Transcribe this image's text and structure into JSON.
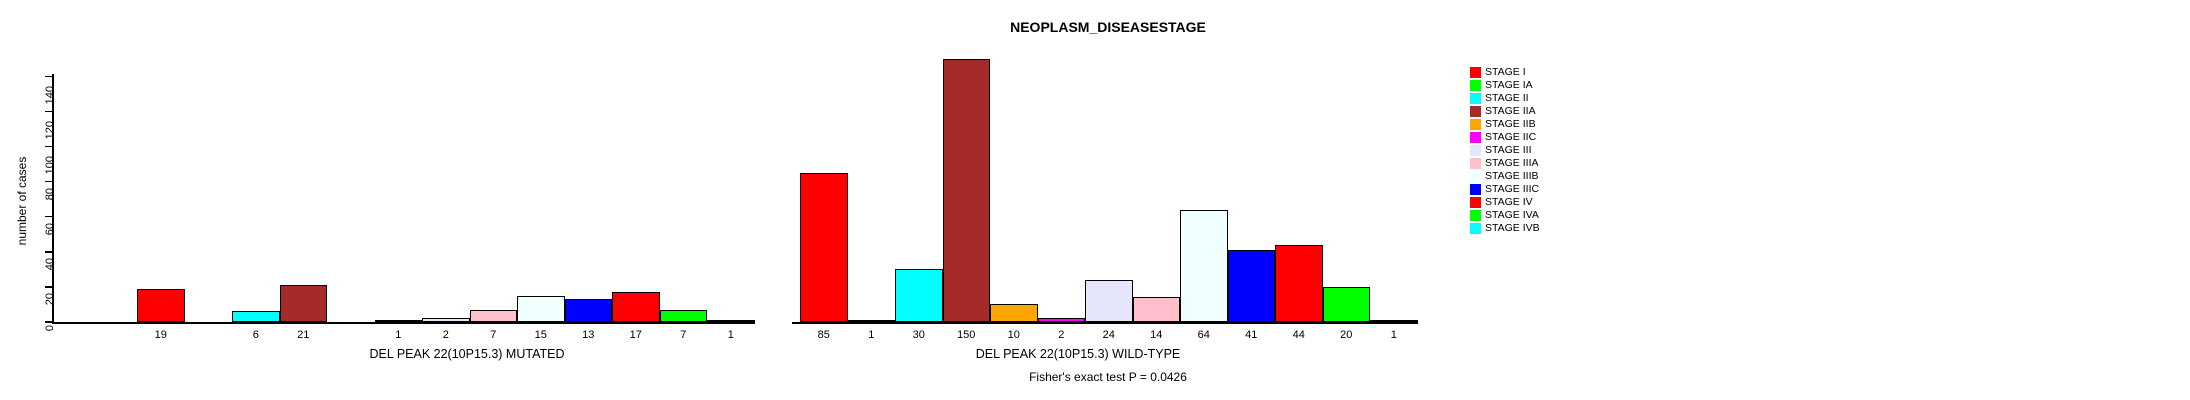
{
  "chart_data": {
    "type": "bar",
    "title": "NEOPLASM_DISEASESTAGE",
    "ylabel": "number of cases",
    "footer": "Fisher's exact test P = 0.0426",
    "ylim": [
      0,
      150
    ],
    "yticks": [
      0,
      20,
      40,
      60,
      80,
      100,
      120,
      140
    ],
    "grid": false,
    "legend_position": "right",
    "categories": [
      "STAGE I",
      "STAGE IA",
      "STAGE II",
      "STAGE IIA",
      "STAGE IIB",
      "STAGE IIC",
      "STAGE III",
      "STAGE IIIA",
      "STAGE IIIB",
      "STAGE IIIC",
      "STAGE IV",
      "STAGE IVA",
      "STAGE IVB"
    ],
    "colors": [
      "#FF0000",
      "#00FF00",
      "#00FFFF",
      "#A52A2A",
      "#FFA500",
      "#FF00FF",
      "#E6E6FA",
      "#FFC0CB",
      "#F0FFFF",
      "#0000FF",
      "#FF0000",
      "#00FF00",
      "#00FFFF"
    ],
    "series": [
      {
        "name": "DEL PEAK 22(10P15.3) MUTATED",
        "key": "mutated",
        "values": [
          19,
          null,
          6,
          21,
          null,
          1,
          2,
          7,
          15,
          13,
          17,
          7,
          1
        ]
      },
      {
        "name": "DEL PEAK 22(10P15.3) WILD-TYPE",
        "key": "wild_type",
        "values": [
          85,
          1,
          30,
          150,
          10,
          2,
          24,
          14,
          64,
          41,
          44,
          20,
          1
        ]
      }
    ],
    "groups": [
      {
        "key": "mutated",
        "xlabel": "DEL PEAK 22(10P15.3) MUTATED"
      },
      {
        "key": "wild_type",
        "xlabel": "DEL PEAK 22(10P15.3) WILD-TYPE"
      }
    ],
    "legend": [
      {
        "label": "STAGE I",
        "color": "#FF0000"
      },
      {
        "label": "STAGE IA",
        "color": "#00FF00"
      },
      {
        "label": "STAGE II",
        "color": "#00FFFF"
      },
      {
        "label": "STAGE IIA",
        "color": "#A52A2A"
      },
      {
        "label": "STAGE IIB",
        "color": "#FFA500"
      },
      {
        "label": "STAGE IIC",
        "color": "#FF00FF"
      },
      {
        "label": "STAGE III",
        "color": "#E6E6FA"
      },
      {
        "label": "STAGE IIIA",
        "color": "#FFC0CB"
      },
      {
        "label": "STAGE IIIB",
        "color": "#F0FFFF"
      },
      {
        "label": "STAGE IIIC",
        "color": "#0000FF"
      },
      {
        "label": "STAGE IV",
        "color": "#FF0000"
      },
      {
        "label": "STAGE IVA",
        "color": "#00FF00"
      },
      {
        "label": "STAGE IVB",
        "color": "#00FFFF"
      }
    ]
  }
}
